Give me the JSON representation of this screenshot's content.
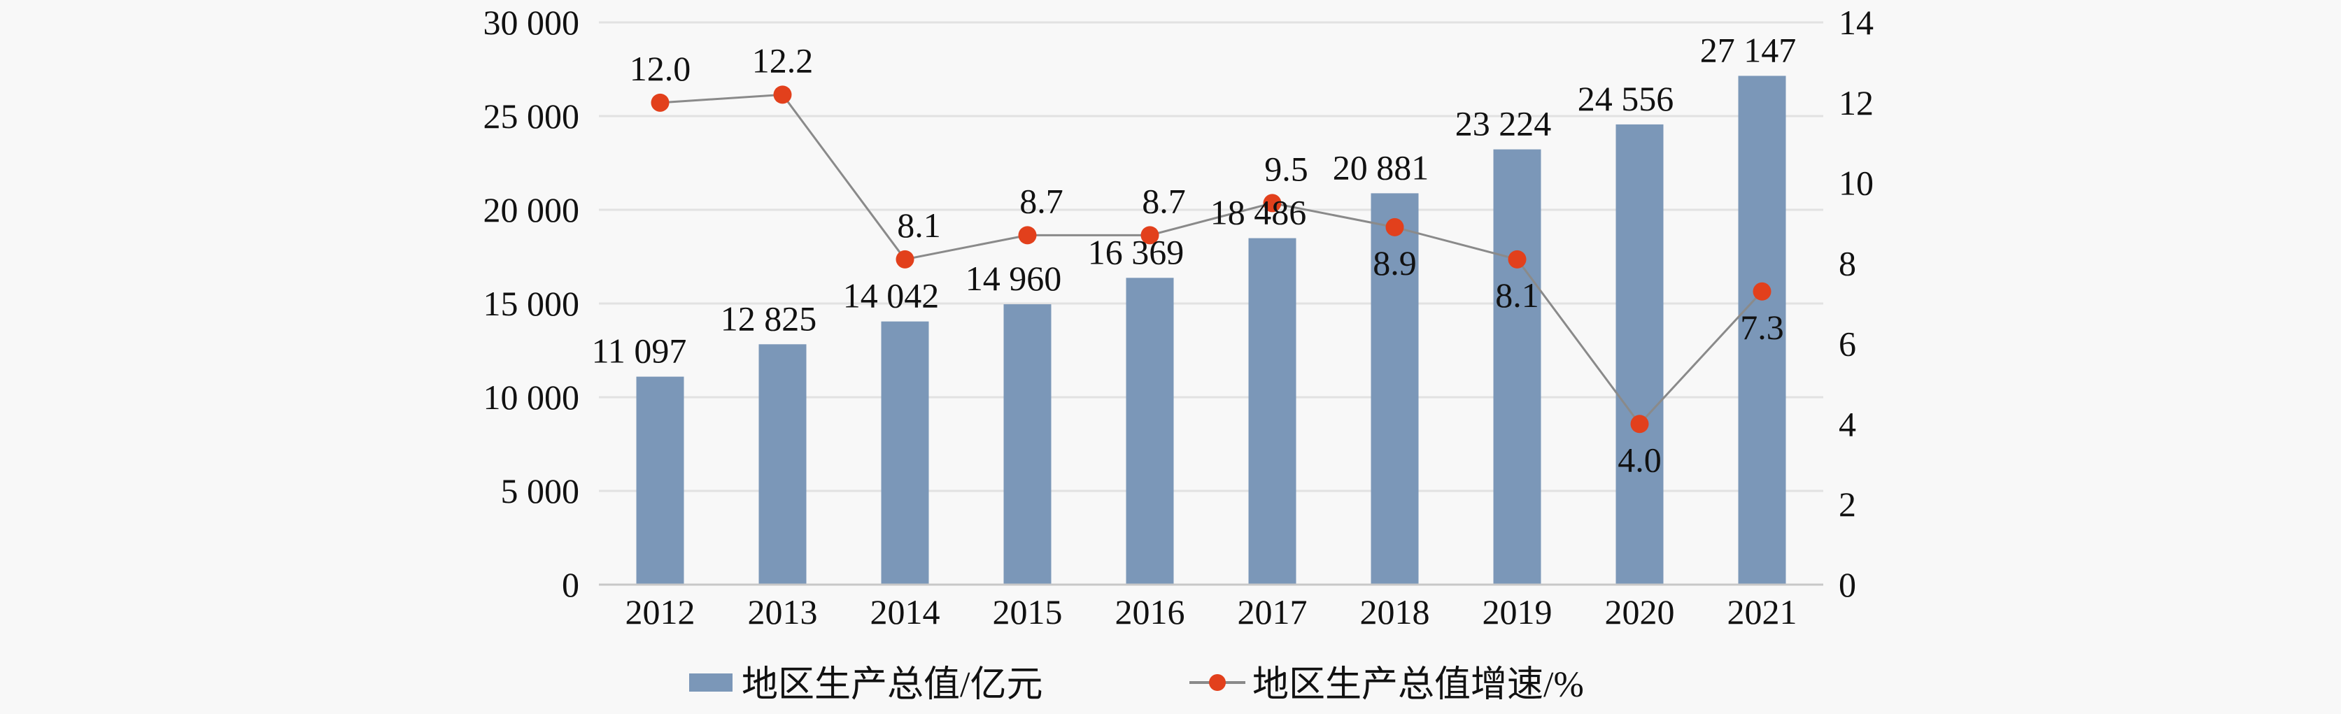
{
  "chart_data": {
    "type": "bar+line",
    "categories": [
      "2012",
      "2013",
      "2014",
      "2015",
      "2016",
      "2017",
      "2018",
      "2019",
      "2020",
      "2021"
    ],
    "series": [
      {
        "name": "地区生产总值/亿元",
        "type": "bar",
        "axis": "left",
        "values": [
          11097,
          12825,
          14042,
          14960,
          16369,
          18486,
          20881,
          23224,
          24556,
          27147
        ],
        "labels": [
          "11 097",
          "12 825",
          "14 042",
          "14 960",
          "16 369",
          "18 486",
          "20 881",
          "23 224",
          "24 556",
          "27 147"
        ]
      },
      {
        "name": "地区生产总值增速/%",
        "type": "line",
        "axis": "right",
        "values": [
          12.0,
          12.2,
          8.1,
          8.7,
          8.7,
          9.5,
          8.9,
          8.1,
          4.0,
          7.3
        ],
        "labels": [
          "12.0",
          "12.2",
          "8.1",
          "8.7",
          "8.7",
          "9.5",
          "8.9",
          "8.1",
          "4.0",
          "7.3"
        ]
      }
    ],
    "y_left": {
      "range": [
        0,
        30000
      ],
      "ticks": [
        0,
        5000,
        10000,
        15000,
        20000,
        25000,
        30000
      ],
      "tick_labels": [
        "0",
        "5 000",
        "10 000",
        "15 000",
        "20 000",
        "25 000",
        "30 000"
      ]
    },
    "y_right": {
      "range": [
        0,
        14
      ],
      "ticks": [
        0,
        2,
        4,
        6,
        8,
        10,
        12,
        14
      ],
      "tick_labels": [
        "0",
        "2",
        "4",
        "6",
        "8",
        "10",
        "12",
        "14"
      ]
    },
    "grid": true,
    "legend": "bottom",
    "colors": {
      "bar": "#7b97b8",
      "line": "#8a8a8a",
      "marker": "#e2401c",
      "grid": "#e2e2e2"
    }
  }
}
